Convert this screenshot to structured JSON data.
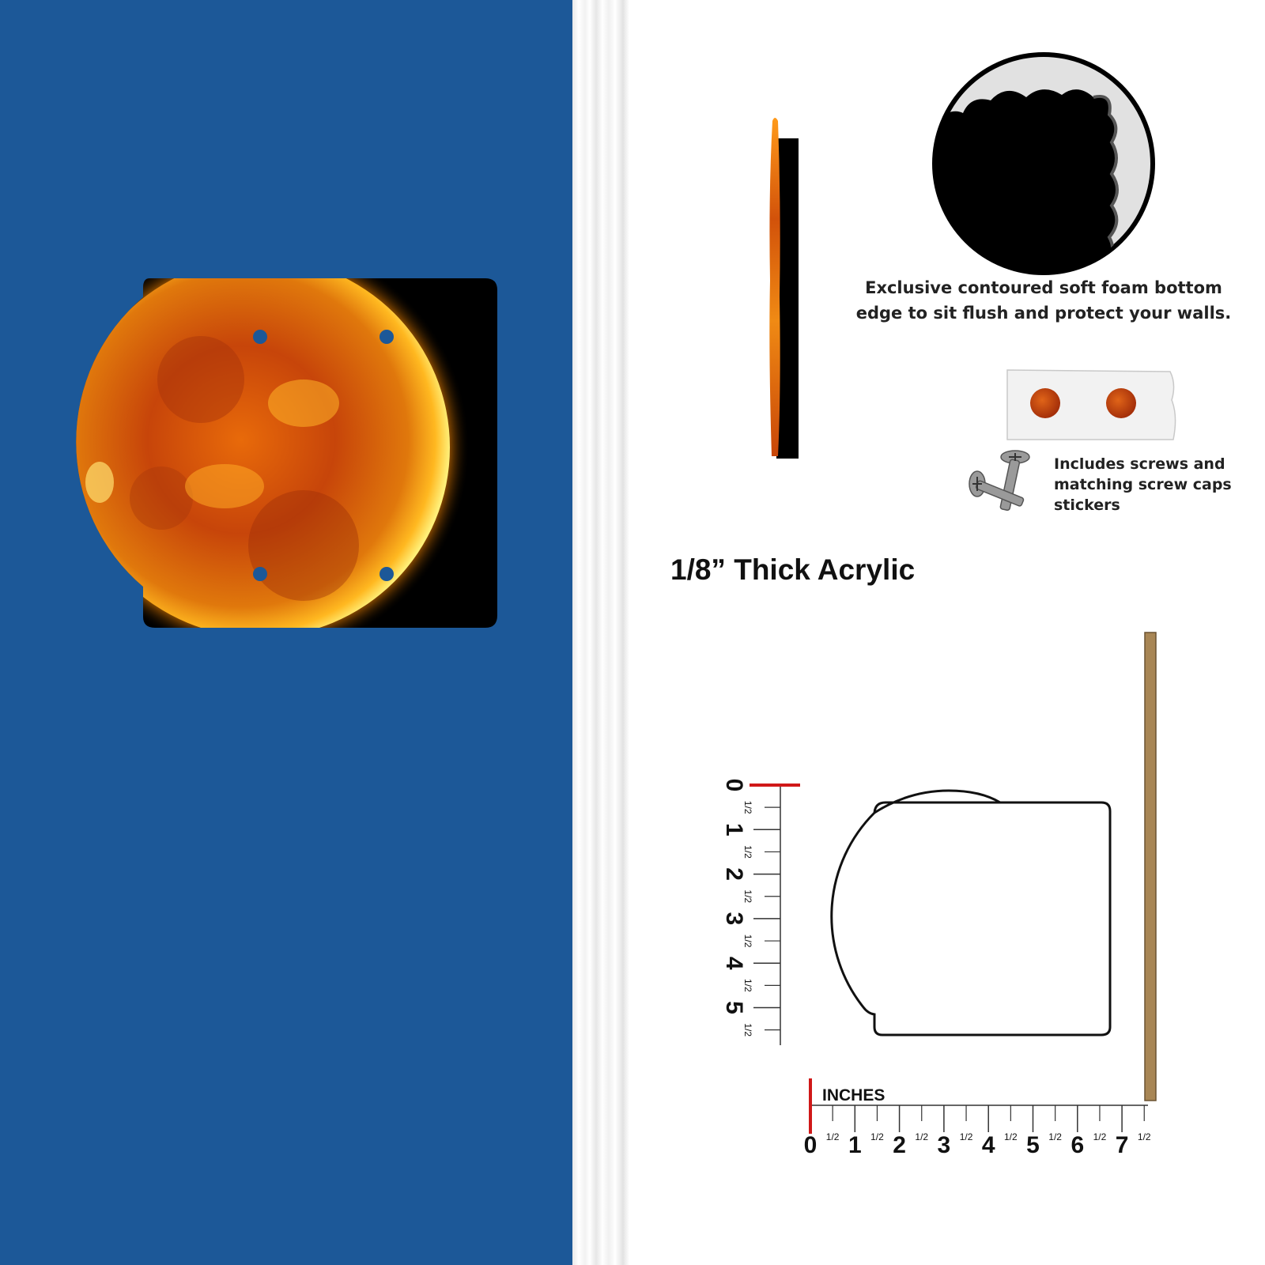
{
  "colors": {
    "wall": "#1c5898",
    "sun_core": "#c23a05",
    "sun_glow": "#ffb400",
    "plate_bg": "#000000",
    "ruler_zero": "#d01818",
    "side_profile": "#a88655"
  },
  "product": {
    "name": "sun-shaped-acrylic-wall-plate",
    "mount_holes": 4
  },
  "features": {
    "foam_caption": "Exclusive contoured soft foam bottom edge to sit flush and protect your walls.",
    "screws_caption": "Includes screws and matching screw caps stickers",
    "thickness_label": "1/8” Thick Acrylic"
  },
  "dimensions": {
    "units_label": "INCHES",
    "width_in": 7.5,
    "height_in": 5.5,
    "horizontal_ruler": {
      "major_labels": [
        "0",
        "1",
        "2",
        "3",
        "4",
        "5",
        "6",
        "7"
      ],
      "half_label": "1/2"
    },
    "vertical_ruler": {
      "major_labels": [
        "0",
        "1",
        "2",
        "3",
        "4",
        "5"
      ],
      "half_label": "1/2"
    }
  }
}
